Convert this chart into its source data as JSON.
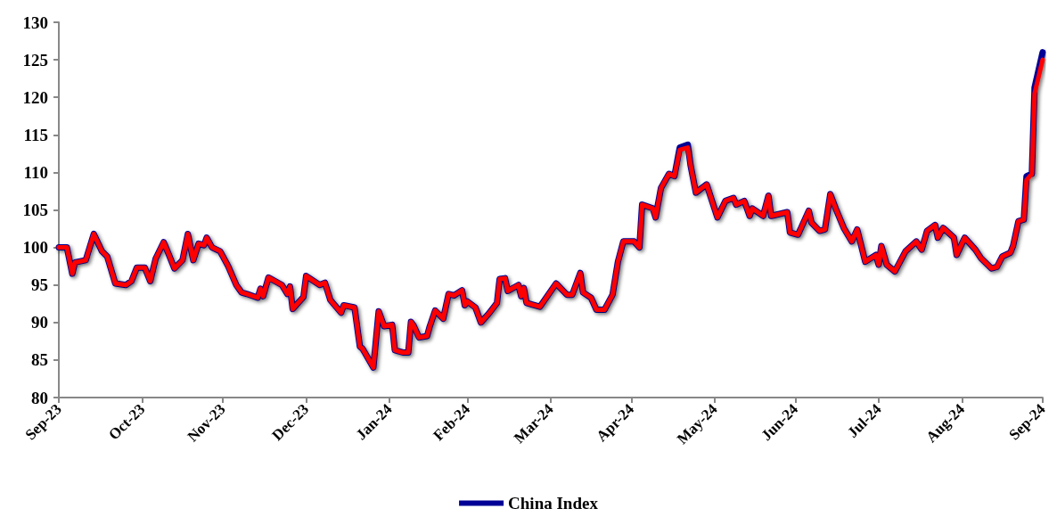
{
  "chart_data": {
    "type": "line",
    "x": [
      "2023-09-30",
      "2023-10-03",
      "2023-10-05",
      "2023-10-06",
      "2023-10-10",
      "2023-10-13",
      "2023-10-16",
      "2023-10-18",
      "2023-10-21",
      "2023-10-25",
      "2023-10-27",
      "2023-10-29",
      "2023-11-01",
      "2023-11-03",
      "2023-11-05",
      "2023-11-08",
      "2023-11-10",
      "2023-11-12",
      "2023-11-15",
      "2023-11-17",
      "2023-11-19",
      "2023-11-21",
      "2023-11-23",
      "2023-11-24",
      "2023-11-26",
      "2023-11-29",
      "2023-12-02",
      "2023-12-05",
      "2023-12-07",
      "2023-12-09",
      "2023-12-13",
      "2023-12-14",
      "2023-12-15",
      "2023-12-17",
      "2023-12-22",
      "2023-12-24",
      "2023-12-25",
      "2023-12-26",
      "2023-12-30",
      "2023-12-31",
      "2024-01-05",
      "2024-01-07",
      "2024-01-09",
      "2024-01-13",
      "2024-01-14",
      "2024-01-18",
      "2024-01-20",
      "2024-01-21",
      "2024-01-25",
      "2024-01-27",
      "2024-01-29",
      "2024-02-01",
      "2024-02-02",
      "2024-02-05",
      "2024-02-07",
      "2024-02-08",
      "2024-02-09",
      "2024-02-11",
      "2024-02-14",
      "2024-02-15",
      "2024-02-17",
      "2024-02-20",
      "2024-02-22",
      "2024-02-24",
      "2024-02-27",
      "2024-02-28",
      "2024-02-29",
      "2024-03-03",
      "2024-03-05",
      "2024-03-08",
      "2024-03-11",
      "2024-03-12",
      "2024-03-14",
      "2024-03-15",
      "2024-03-19",
      "2024-03-20",
      "2024-03-21",
      "2024-03-22",
      "2024-03-27",
      "2024-04-02",
      "2024-04-06",
      "2024-04-08",
      "2024-04-11",
      "2024-04-12",
      "2024-04-15",
      "2024-04-17",
      "2024-04-20",
      "2024-04-23",
      "2024-04-25",
      "2024-04-27",
      "2024-05-01",
      "2024-05-03",
      "2024-05-04",
      "2024-05-08",
      "2024-05-09",
      "2024-05-11",
      "2024-05-14",
      "2024-05-16",
      "2024-05-18",
      "2024-05-21",
      "2024-05-22",
      "2024-05-24",
      "2024-05-28",
      "2024-06-01",
      "2024-06-04",
      "2024-06-07",
      "2024-06-08",
      "2024-06-11",
      "2024-06-13",
      "2024-06-14",
      "2024-06-18",
      "2024-06-20",
      "2024-06-21",
      "2024-06-27",
      "2024-06-28",
      "2024-07-01",
      "2024-07-05",
      "2024-07-06",
      "2024-07-09",
      "2024-07-11",
      "2024-07-13",
      "2024-07-15",
      "2024-07-18",
      "2024-07-21",
      "2024-07-23",
      "2024-07-26",
      "2024-07-30",
      "2024-07-31",
      "2024-08-01",
      "2024-08-03",
      "2024-08-06",
      "2024-08-10",
      "2024-08-14",
      "2024-08-16",
      "2024-08-18",
      "2024-08-21",
      "2024-08-22",
      "2024-08-24",
      "2024-08-28",
      "2024-08-29",
      "2024-09-01",
      "2024-09-05",
      "2024-09-07",
      "2024-09-11",
      "2024-09-13",
      "2024-09-15",
      "2024-09-18",
      "2024-09-19",
      "2024-09-21",
      "2024-09-23",
      "2024-09-24",
      "2024-09-26",
      "2024-09-27",
      "2024-09-30"
    ],
    "series": [
      {
        "name": "China Index",
        "color": "#000096",
        "values": [
          100,
          100,
          96.5,
          98,
          98.3,
          101.8,
          99.5,
          98.8,
          95.2,
          95,
          95.5,
          97.3,
          97.3,
          95.5,
          98.5,
          100.7,
          99,
          97.2,
          98.3,
          101.8,
          98.3,
          100.5,
          100.3,
          101.3,
          100,
          99.5,
          97.5,
          95,
          94,
          93.8,
          93.3,
          94.5,
          93.5,
          96,
          95,
          93.8,
          94.8,
          91.8,
          93.4,
          96.2,
          95,
          95.3,
          93,
          91.3,
          92.3,
          92,
          86.8,
          86.5,
          84,
          91.5,
          89.5,
          89.7,
          86.3,
          86,
          86,
          90.1,
          89.6,
          88,
          88.2,
          89.5,
          91.6,
          90.5,
          93.8,
          93.6,
          94.3,
          92.3,
          92.8,
          92,
          90,
          91.2,
          92.6,
          95.8,
          95.9,
          94.2,
          95,
          93.5,
          94.6,
          92.6,
          92.1,
          95.2,
          93.7,
          93.7,
          96.6,
          94,
          93.3,
          91.7,
          91.7,
          93.7,
          98.1,
          100.8,
          100.8,
          100,
          105.7,
          105.2,
          104,
          107.9,
          109.8,
          109.5,
          113.3,
          113.7,
          111,
          107.3,
          108.4,
          104,
          106.2,
          106.6,
          105.7,
          106.2,
          104.2,
          105.2,
          104.2,
          106.9,
          104.2,
          104.7,
          102,
          101.7,
          104.9,
          103.3,
          102.2,
          102.4,
          107.1,
          105.2,
          102.6,
          100.8,
          102.4,
          98.1,
          99,
          97.7,
          100.2,
          97.7,
          96.8,
          99.5,
          100.8,
          99.7,
          102.2,
          103,
          101.3,
          102.6,
          101.3,
          99,
          101.3,
          99.7,
          98.6,
          97.2,
          97.4,
          98.8,
          99.3,
          100.2,
          103.5,
          103.7,
          109.5,
          109.8,
          121.3,
          126
        ]
      },
      {
        "color": "#ff0000",
        "values": [
          100,
          100,
          96.5,
          98,
          98.3,
          101.8,
          99.5,
          98.8,
          95.2,
          95,
          95.5,
          97.3,
          97.3,
          95.5,
          98.5,
          100.7,
          99,
          97.2,
          98.3,
          101.8,
          98.3,
          100.5,
          100.3,
          101.3,
          100,
          99.5,
          97.5,
          95,
          94,
          93.8,
          93.3,
          94.5,
          93.5,
          96,
          95,
          93.8,
          94.8,
          91.8,
          93.4,
          96.2,
          95,
          95.3,
          93,
          91.3,
          92.3,
          92,
          86.8,
          86.5,
          84,
          91.5,
          89.5,
          89.7,
          86.3,
          86,
          86,
          90.1,
          89.6,
          88,
          88.2,
          89.5,
          91.6,
          90.5,
          93.8,
          93.6,
          94.3,
          92.3,
          92.8,
          92,
          90,
          91.2,
          92.6,
          95.8,
          95.9,
          94.2,
          95,
          93.5,
          94.6,
          92.6,
          92.1,
          95.2,
          93.7,
          93.7,
          96.6,
          94,
          93.3,
          91.7,
          91.7,
          93.7,
          98.1,
          100.8,
          100.8,
          100,
          105.7,
          105.2,
          104,
          107.9,
          109.8,
          109.5,
          113,
          113.3,
          111,
          107.3,
          108.4,
          104,
          106.2,
          106.6,
          105.7,
          106.2,
          104.2,
          105.2,
          104.2,
          106.9,
          104.2,
          104.7,
          102,
          101.7,
          104.9,
          103.3,
          102.2,
          102.4,
          107.1,
          105.2,
          102.6,
          100.8,
          102.4,
          98.1,
          99,
          97.7,
          100.2,
          97.7,
          96.8,
          99.5,
          100.8,
          99.7,
          102.2,
          103,
          101.3,
          102.6,
          101.3,
          99,
          101.3,
          99.7,
          98.6,
          97.2,
          97.4,
          98.8,
          99.3,
          100.2,
          103.5,
          103.7,
          109,
          109.8,
          120.5,
          125
        ]
      }
    ],
    "xlim": [
      "2023-09-30",
      "2024-09-30"
    ],
    "xticks": [
      {
        "value": "2023-09-30",
        "label": "Sep-23"
      },
      {
        "value": "2023-10-31",
        "label": "Oct-23"
      },
      {
        "value": "2023-11-30",
        "label": "Nov-23"
      },
      {
        "value": "2023-12-31",
        "label": "Dec-23"
      },
      {
        "value": "2024-01-31",
        "label": "Jan-24"
      },
      {
        "value": "2024-02-29",
        "label": "Feb-24"
      },
      {
        "value": "2024-03-31",
        "label": "Mar-24"
      },
      {
        "value": "2024-04-30",
        "label": "Apr-24"
      },
      {
        "value": "2024-05-31",
        "label": "May-24"
      },
      {
        "value": "2024-06-30",
        "label": "Jun-24"
      },
      {
        "value": "2024-07-31",
        "label": "Jul-24"
      },
      {
        "value": "2024-08-31",
        "label": "Aug-24"
      },
      {
        "value": "2024-09-30",
        "label": "Sep-24"
      }
    ],
    "ylim": [
      80,
      130
    ],
    "yticks": [
      80,
      85,
      90,
      95,
      100,
      105,
      110,
      115,
      120,
      125,
      130
    ],
    "legend": "bottom",
    "marker": "none",
    "line_style": "solid"
  }
}
